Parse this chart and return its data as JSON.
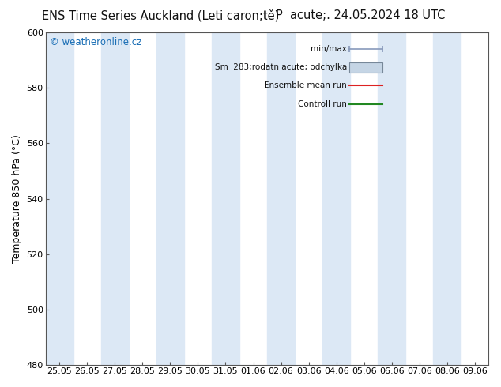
{
  "title_left": "ENS Time Series Auckland (Leti caron;tě)",
  "title_right": "P  acute;. 24.05.2024 18 UTC",
  "ylabel": "Temperature 850 hPa (°C)",
  "ylim": [
    480,
    600
  ],
  "yticks": [
    480,
    500,
    520,
    540,
    560,
    580,
    600
  ],
  "xlabels": [
    "25.05",
    "26.05",
    "27.05",
    "28.05",
    "29.05",
    "30.05",
    "31.05",
    "01.06",
    "02.06",
    "03.06",
    "04.06",
    "05.06",
    "06.06",
    "07.06",
    "08.06",
    "09.06"
  ],
  "background_color": "#ffffff",
  "band_color": "#dce8f5",
  "band_positions": [
    0,
    2,
    4,
    6,
    8,
    10,
    12,
    14
  ],
  "watermark": "© weatheronline.cz",
  "watermark_color": "#1a6eb5",
  "legend_labels": [
    "min/max",
    "Sm  283;rodatn acute; odchylka",
    "Ensemble mean run",
    "Controll run"
  ],
  "legend_line_colors": [
    "#8899aa",
    "#8899aa",
    "#dd2222",
    "#228822"
  ],
  "legend_box_color": "#c5d5e5",
  "title_fontsize": 10.5,
  "axis_fontsize": 9,
  "tick_fontsize": 8
}
